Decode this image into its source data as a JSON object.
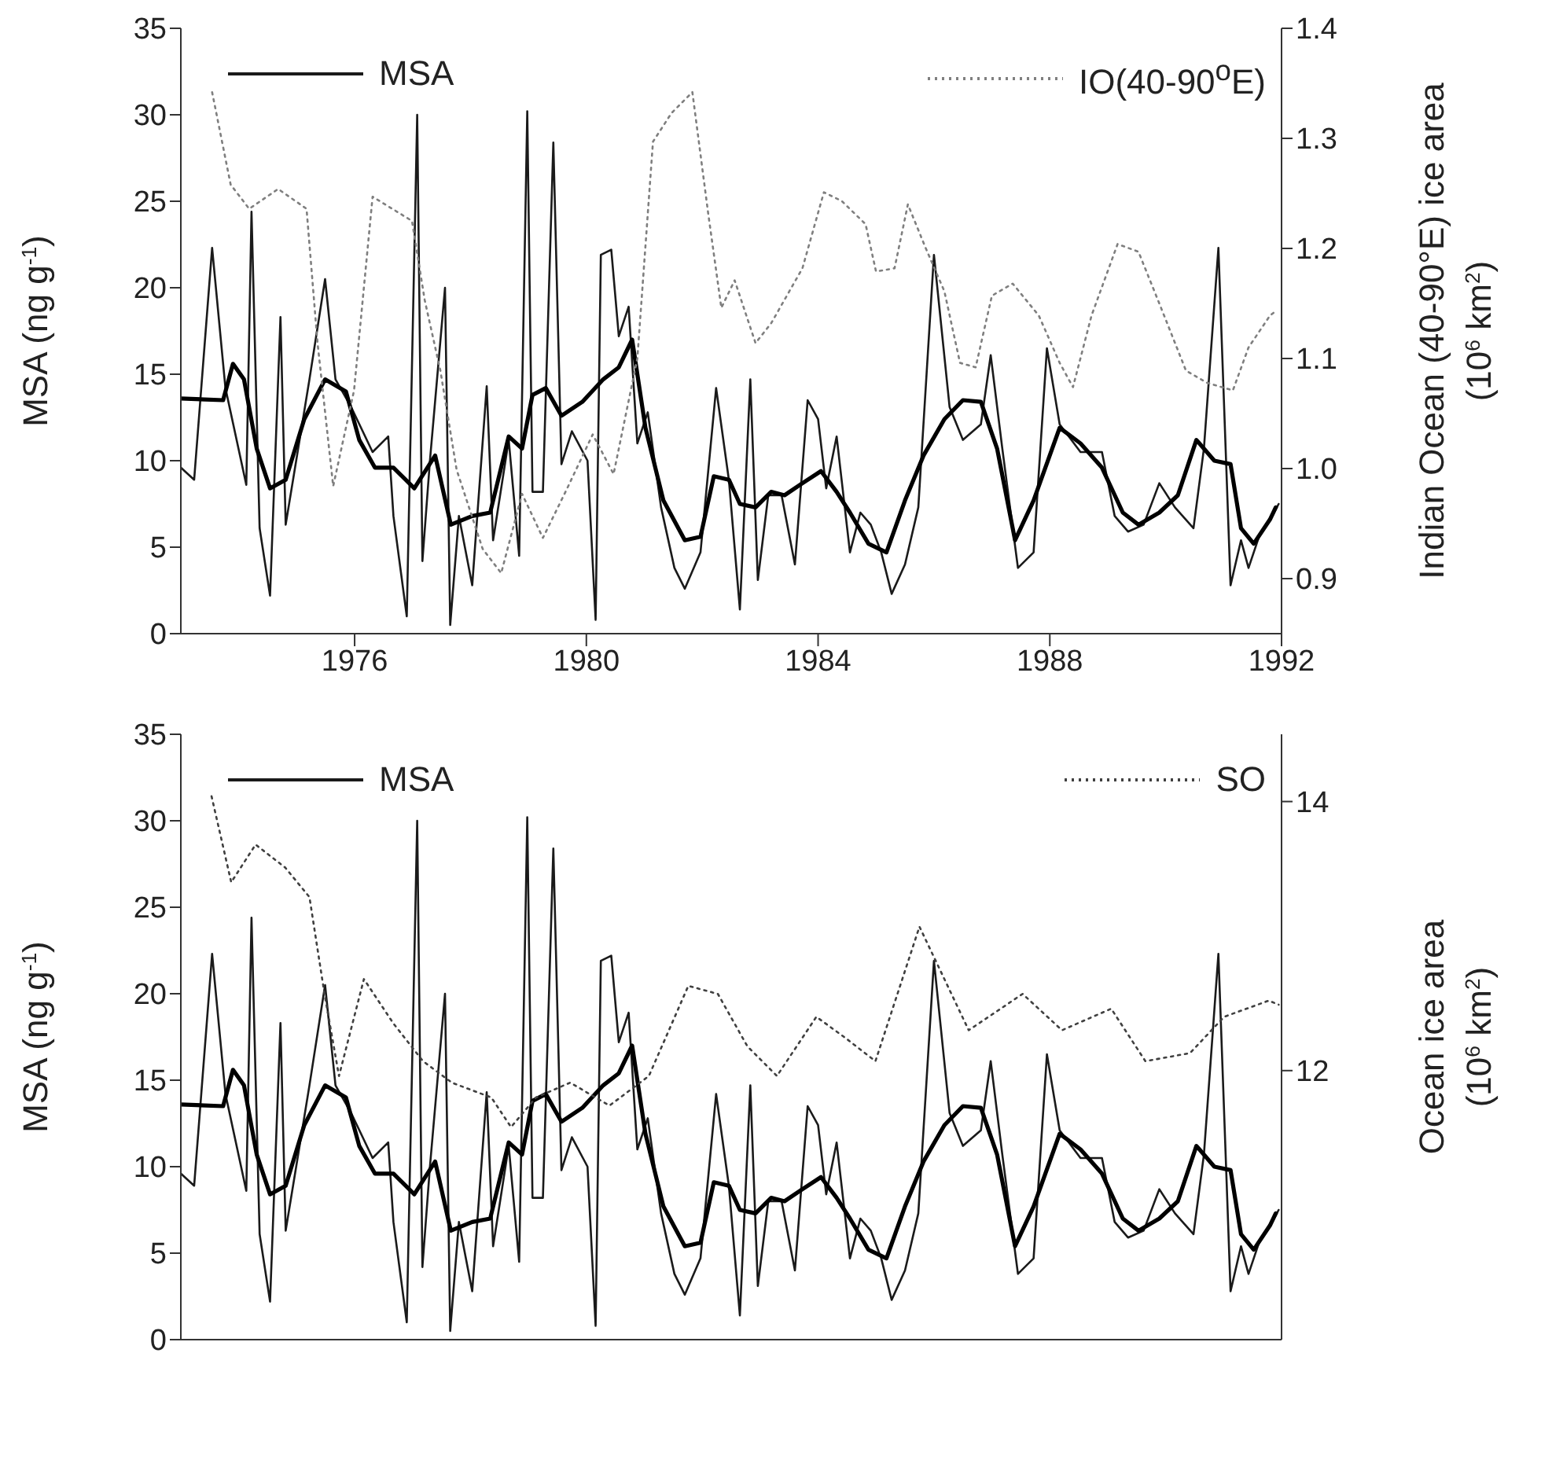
{
  "chart_data": [
    {
      "type": "line",
      "ylabel": "MSA (ng g$^{-1}$)",
      "y2label": "Indian Ocean (40-90°E) ice area (10$^{6}$ km$^{2}$)",
      "xlim": [
        1973,
        1992
      ],
      "xticks": [
        1976,
        1980,
        1984,
        1988,
        1992
      ],
      "ylim": [
        0,
        35
      ],
      "yticks": [
        0,
        5,
        10,
        15,
        20,
        25,
        30,
        35
      ],
      "y2lim": [
        0.85,
        1.4
      ],
      "y2ticks": [
        0.9,
        {
          "value": 1,
          "label": "1.0"
        },
        1.1,
        1.2,
        1.3,
        1.4
      ],
      "grid": false,
      "legend": "top",
      "marker": "none",
      "series": [
        {
          "name": "MSA",
          "color": "#1a1a1a",
          "line_style": "solid",
          "x": [
            1973.0,
            1973.23,
            1973.54,
            1973.77,
            1974.13,
            1974.22,
            1974.36,
            1974.54,
            1974.72,
            1974.81,
            1975.04,
            1975.22,
            1975.49,
            1975.67,
            1975.94,
            1976.31,
            1976.58,
            1976.67,
            1976.9,
            1977.08,
            1977.17,
            1977.3,
            1977.56,
            1977.65,
            1977.8,
            1978.03,
            1978.28,
            1978.39,
            1978.66,
            1978.84,
            1978.98,
            1979.07,
            1979.25,
            1979.43,
            1979.57,
            1979.75,
            1980.02,
            1980.16,
            1980.25,
            1980.43,
            1980.56,
            1980.73,
            1980.88,
            1981.06,
            1981.29,
            1981.52,
            1981.7,
            1981.97,
            1982.24,
            1982.46,
            1982.65,
            1982.83,
            1982.96,
            1983.14,
            1983.37,
            1983.6,
            1983.82,
            1984.0,
            1984.14,
            1984.32,
            1984.55,
            1984.73,
            1984.91,
            1985.09,
            1985.27,
            1985.5,
            1985.73,
            1986.0,
            1986.27,
            1986.5,
            1986.81,
            1986.98,
            1987.18,
            1987.45,
            1987.72,
            1987.95,
            1988.17,
            1988.53,
            1988.9,
            1989.12,
            1989.35,
            1989.62,
            1989.89,
            1990.16,
            1990.48,
            1990.66,
            1990.91,
            1991.12,
            1991.3,
            1991.43,
            1991.61,
            1991.84,
            1991.95
          ],
          "values": [
            9.6,
            8.9,
            22.3,
            14.2,
            8.6,
            24.4,
            6.1,
            2.2,
            18.3,
            6.3,
            11.0,
            14.7,
            20.5,
            14.7,
            13.1,
            10.5,
            11.4,
            6.8,
            1.0,
            30.0,
            4.2,
            10.0,
            20.0,
            0.5,
            6.8,
            2.8,
            14.3,
            5.4,
            11.2,
            4.5,
            30.2,
            8.2,
            8.2,
            28.4,
            9.8,
            11.7,
            10.0,
            0.8,
            21.9,
            22.2,
            17.2,
            18.9,
            11.0,
            12.8,
            7.3,
            3.8,
            2.6,
            4.7,
            14.2,
            8.9,
            1.4,
            14.7,
            3.1,
            8.0,
            8.0,
            4.0,
            13.5,
            12.4,
            8.4,
            11.4,
            4.7,
            7.0,
            6.3,
            4.7,
            2.3,
            4.0,
            7.3,
            21.9,
            13.1,
            11.2,
            12.1,
            16.1,
            10.7,
            3.8,
            4.7,
            16.5,
            12.1,
            10.5,
            10.5,
            6.8,
            5.9,
            6.3,
            8.7,
            7.3,
            6.1,
            10.7,
            22.3,
            2.8,
            5.4,
            3.8,
            5.6,
            6.8,
            7.5
          ]
        },
        {
          "color": "#000000",
          "line_style": "solid",
          "x": [
            1973.0,
            1973.73,
            1973.9,
            1974.09,
            1974.31,
            1974.54,
            1974.81,
            1975.13,
            1975.49,
            1975.85,
            1976.08,
            1976.35,
            1976.67,
            1977.03,
            1977.39,
            1977.66,
            1978.03,
            1978.34,
            1978.66,
            1978.89,
            1979.07,
            1979.3,
            1979.57,
            1979.93,
            1980.29,
            1980.56,
            1980.79,
            1981.02,
            1981.33,
            1981.7,
            1981.97,
            1982.2,
            1982.46,
            1982.65,
            1982.92,
            1983.19,
            1983.42,
            1983.73,
            1984.05,
            1984.32,
            1984.55,
            1984.87,
            1985.18,
            1985.5,
            1985.82,
            1986.18,
            1986.5,
            1986.81,
            1987.09,
            1987.4,
            1987.72,
            1988.17,
            1988.53,
            1988.9,
            1989.26,
            1989.53,
            1989.89,
            1990.21,
            1990.53,
            1990.84,
            1991.12,
            1991.3,
            1991.52,
            1991.8,
            1991.9
          ],
          "values": [
            13.6,
            13.5,
            15.6,
            14.7,
            10.7,
            8.4,
            8.9,
            12.4,
            14.7,
            14.0,
            11.2,
            9.6,
            9.6,
            8.4,
            10.3,
            6.3,
            6.8,
            7.0,
            11.4,
            10.7,
            13.8,
            14.2,
            12.6,
            13.4,
            14.7,
            15.4,
            17.0,
            11.9,
            7.7,
            5.4,
            5.6,
            9.1,
            8.9,
            7.5,
            7.3,
            8.2,
            8.0,
            8.7,
            9.4,
            8.2,
            7.0,
            5.2,
            4.7,
            7.7,
            10.3,
            12.4,
            13.5,
            13.4,
            10.7,
            5.4,
            7.7,
            11.9,
            11.0,
            9.6,
            7.0,
            6.3,
            7.0,
            8.0,
            11.2,
            10.0,
            9.8,
            6.1,
            5.2,
            6.6,
            7.3
          ]
        },
        {
          "name": "IO(40-90$^{o}$E)",
          "color": "#7f7f7f",
          "line_style": "dotted",
          "axis": "y2",
          "x": [
            1973.54,
            1973.86,
            1974.18,
            1974.68,
            1975.17,
            1975.36,
            1975.63,
            1975.99,
            1976.31,
            1976.99,
            1977.21,
            1977.48,
            1977.76,
            1978.21,
            1978.53,
            1978.89,
            1979.25,
            1979.66,
            1980.11,
            1980.47,
            1980.88,
            1981.15,
            1981.47,
            1981.83,
            1982.1,
            1982.33,
            1982.56,
            1982.92,
            1983.19,
            1983.73,
            1984.1,
            1984.41,
            1984.82,
            1985.0,
            1985.32,
            1985.55,
            1985.86,
            1986.18,
            1986.45,
            1986.72,
            1987.0,
            1987.36,
            1987.81,
            1988.17,
            1988.4,
            1988.72,
            1989.17,
            1989.53,
            1989.89,
            1990.35,
            1990.71,
            1991.16,
            1991.43,
            1991.8,
            1991.9
          ],
          "values": [
            1.342,
            1.258,
            1.236,
            1.254,
            1.236,
            1.114,
            0.984,
            1.071,
            1.247,
            1.225,
            1.153,
            1.089,
            0.999,
            0.927,
            0.905,
            0.977,
            0.937,
            0.981,
            1.031,
            0.995,
            1.1,
            1.297,
            1.323,
            1.342,
            1.233,
            1.146,
            1.171,
            1.114,
            1.132,
            1.182,
            1.251,
            1.243,
            1.222,
            1.179,
            1.182,
            1.24,
            1.2,
            1.161,
            1.096,
            1.092,
            1.157,
            1.168,
            1.139,
            1.096,
            1.074,
            1.139,
            1.204,
            1.197,
            1.15,
            1.089,
            1.078,
            1.071,
            1.11,
            1.139,
            1.143
          ]
        }
      ]
    },
    {
      "type": "line",
      "ylabel": "MSA (ng g$^{-1}$)",
      "y2label": "Ocean ice area (10$^{6}$ km$^{2}$)",
      "xlim": [
        1973,
        1992
      ],
      "ylim": [
        0,
        35
      ],
      "yticks": [
        0,
        5,
        10,
        15,
        20,
        25,
        30,
        35
      ],
      "y2lim": [
        10,
        14.5
      ],
      "y2ticks": [
        12,
        14
      ],
      "grid": false,
      "legend": "top",
      "marker": "none",
      "tick_labels": "y",
      "series": [
        {
          "name": "MSA",
          "color": "#1a1a1a",
          "line_style": "solid",
          "x": [
            1973.0,
            1973.23,
            1973.54,
            1973.77,
            1974.13,
            1974.22,
            1974.36,
            1974.54,
            1974.72,
            1974.81,
            1975.04,
            1975.22,
            1975.49,
            1975.67,
            1975.94,
            1976.31,
            1976.58,
            1976.67,
            1976.9,
            1977.08,
            1977.17,
            1977.3,
            1977.56,
            1977.65,
            1977.8,
            1978.03,
            1978.28,
            1978.39,
            1978.66,
            1978.84,
            1978.98,
            1979.07,
            1979.25,
            1979.43,
            1979.57,
            1979.75,
            1980.02,
            1980.16,
            1980.25,
            1980.43,
            1980.56,
            1980.73,
            1980.88,
            1981.06,
            1981.29,
            1981.52,
            1981.7,
            1981.97,
            1982.24,
            1982.46,
            1982.65,
            1982.83,
            1982.96,
            1983.14,
            1983.37,
            1983.6,
            1983.82,
            1984.0,
            1984.14,
            1984.32,
            1984.55,
            1984.73,
            1984.91,
            1985.09,
            1985.27,
            1985.5,
            1985.73,
            1986.0,
            1986.27,
            1986.5,
            1986.81,
            1986.98,
            1987.18,
            1987.45,
            1987.72,
            1987.95,
            1988.17,
            1988.53,
            1988.9,
            1989.12,
            1989.35,
            1989.62,
            1989.89,
            1990.16,
            1990.48,
            1990.66,
            1990.91,
            1991.12,
            1991.3,
            1991.43,
            1991.61,
            1991.84,
            1991.95
          ],
          "values": [
            9.6,
            8.9,
            22.3,
            14.2,
            8.6,
            24.4,
            6.1,
            2.2,
            18.3,
            6.3,
            11.0,
            14.7,
            20.5,
            14.7,
            13.1,
            10.5,
            11.4,
            6.8,
            1.0,
            30.0,
            4.2,
            10.0,
            20.0,
            0.5,
            6.8,
            2.8,
            14.3,
            5.4,
            11.2,
            4.5,
            30.2,
            8.2,
            8.2,
            28.4,
            9.8,
            11.7,
            10.0,
            0.8,
            21.9,
            22.2,
            17.2,
            18.9,
            11.0,
            12.8,
            7.3,
            3.8,
            2.6,
            4.7,
            14.2,
            8.9,
            1.4,
            14.7,
            3.1,
            8.0,
            8.0,
            4.0,
            13.5,
            12.4,
            8.4,
            11.4,
            4.7,
            7.0,
            6.3,
            4.7,
            2.3,
            4.0,
            7.3,
            21.9,
            13.1,
            11.2,
            12.1,
            16.1,
            10.7,
            3.8,
            4.7,
            16.5,
            12.1,
            10.5,
            10.5,
            6.8,
            5.9,
            6.3,
            8.7,
            7.3,
            6.1,
            10.7,
            22.3,
            2.8,
            5.4,
            3.8,
            5.6,
            6.8,
            7.5
          ]
        },
        {
          "color": "#000000",
          "line_style": "solid",
          "x": [
            1973.0,
            1973.73,
            1973.9,
            1974.09,
            1974.31,
            1974.54,
            1974.81,
            1975.13,
            1975.49,
            1975.85,
            1976.08,
            1976.35,
            1976.67,
            1977.03,
            1977.39,
            1977.66,
            1978.03,
            1978.34,
            1978.66,
            1978.89,
            1979.07,
            1979.3,
            1979.57,
            1979.93,
            1980.29,
            1980.56,
            1980.79,
            1981.02,
            1981.33,
            1981.7,
            1981.97,
            1982.2,
            1982.46,
            1982.65,
            1982.92,
            1983.19,
            1983.42,
            1983.73,
            1984.05,
            1984.32,
            1984.55,
            1984.87,
            1985.18,
            1985.5,
            1985.82,
            1986.18,
            1986.5,
            1986.81,
            1987.09,
            1987.4,
            1987.72,
            1988.17,
            1988.53,
            1988.9,
            1989.26,
            1989.53,
            1989.89,
            1990.21,
            1990.53,
            1990.84,
            1991.12,
            1991.3,
            1991.52,
            1991.8,
            1991.9
          ],
          "values": [
            13.6,
            13.5,
            15.6,
            14.7,
            10.7,
            8.4,
            8.9,
            12.4,
            14.7,
            14.0,
            11.2,
            9.6,
            9.6,
            8.4,
            10.3,
            6.3,
            6.8,
            7.0,
            11.4,
            10.7,
            13.8,
            14.2,
            12.6,
            13.4,
            14.7,
            15.4,
            17.0,
            11.9,
            7.7,
            5.4,
            5.6,
            9.1,
            8.9,
            7.5,
            7.3,
            8.2,
            8.0,
            8.7,
            9.4,
            8.2,
            7.0,
            5.2,
            4.7,
            7.7,
            10.3,
            12.4,
            13.5,
            13.4,
            10.7,
            5.4,
            7.7,
            11.9,
            11.0,
            9.6,
            7.0,
            6.3,
            7.0,
            8.0,
            11.2,
            10.0,
            9.8,
            6.1,
            5.2,
            6.6,
            7.3
          ]
        },
        {
          "name": "SO",
          "color": "#404040",
          "line_style": "dotted",
          "axis": "y2",
          "x": [
            1973.53,
            1973.87,
            1974.29,
            1974.8,
            1975.22,
            1975.48,
            1975.73,
            1976.16,
            1976.67,
            1977.18,
            1977.68,
            1978.36,
            1978.7,
            1979.13,
            1979.72,
            1980.4,
            1981.08,
            1981.76,
            1982.27,
            1982.78,
            1983.29,
            1983.97,
            1984.48,
            1984.99,
            1985.75,
            1986.6,
            1987.53,
            1988.21,
            1989.06,
            1989.65,
            1990.42,
            1991.01,
            1991.78,
            1991.95
          ],
          "values": [
            14.04,
            13.4,
            13.68,
            13.51,
            13.29,
            12.57,
            11.96,
            12.68,
            12.35,
            12.07,
            11.91,
            11.8,
            11.58,
            11.8,
            11.91,
            11.74,
            11.96,
            12.63,
            12.57,
            12.18,
            11.96,
            12.4,
            12.24,
            12.07,
            13.07,
            12.3,
            12.57,
            12.3,
            12.46,
            12.07,
            12.13,
            12.4,
            12.52,
            12.49
          ]
        }
      ]
    }
  ]
}
